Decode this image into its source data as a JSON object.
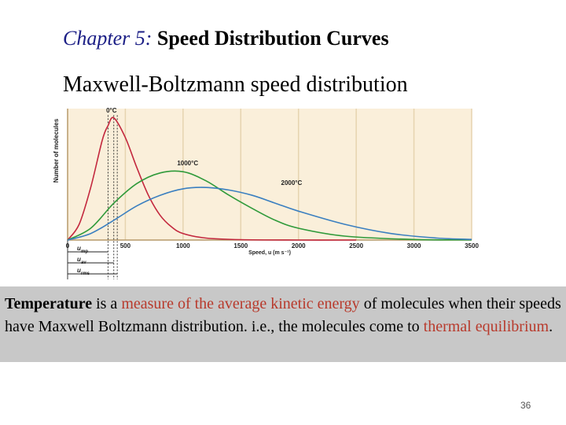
{
  "slide": {
    "chapter_label": "Chapter 5:",
    "title": "Speed Distribution Curves",
    "subtitle": "Maxwell-Boltzmann speed distribution",
    "page_number": "36"
  },
  "caption": {
    "parts": [
      {
        "text": "Temperature",
        "style": "bold"
      },
      {
        "text": " is a ",
        "style": "normal"
      },
      {
        "text": "measure of the average kinetic energy",
        "style": "red"
      },
      {
        "text": " of molecules when their speeds have Maxwell Boltzmann distribution. i.e., the molecules come to ",
        "style": "normal"
      },
      {
        "text": "thermal equilibrium",
        "style": "red"
      },
      {
        "text": ".",
        "style": "normal"
      }
    ]
  },
  "chart_data": {
    "type": "line",
    "xlabel": "Speed, u (m s⁻¹)",
    "ylabel": "Number of molecules",
    "xlim": [
      0,
      3500
    ],
    "ylim": [
      0,
      1.0
    ],
    "x_ticks": [
      0,
      500,
      1000,
      1500,
      2000,
      2500,
      3000,
      3500
    ],
    "x_tick_labels": [
      "0",
      "500",
      "1000",
      "1500",
      "2000",
      "2500",
      "3000",
      "3500"
    ],
    "grid": true,
    "colors": {
      "background": "#faefda",
      "grid": "#e6d4b0",
      "axis": "#b79a6a"
    },
    "series": [
      {
        "name": "0°C",
        "color": "#c3283e",
        "x": [
          0,
          100,
          200,
          300,
          350,
          400,
          500,
          600,
          700,
          800,
          900,
          1000,
          1200,
          1500,
          2000,
          2500
        ],
        "y": [
          0.0,
          0.12,
          0.4,
          0.76,
          0.87,
          0.93,
          0.78,
          0.55,
          0.34,
          0.19,
          0.1,
          0.05,
          0.015,
          0.003,
          0.0,
          0.0
        ]
      },
      {
        "name": "1000°C",
        "color": "#2f9a3a",
        "x": [
          0,
          200,
          400,
          600,
          800,
          1000,
          1200,
          1400,
          1600,
          1800,
          2000,
          2400,
          3000,
          3500
        ],
        "y": [
          0.0,
          0.09,
          0.28,
          0.43,
          0.51,
          0.52,
          0.45,
          0.34,
          0.24,
          0.15,
          0.09,
          0.03,
          0.004,
          0.001
        ]
      },
      {
        "name": "2000°C",
        "color": "#3a7fc0",
        "x": [
          0,
          200,
          400,
          600,
          800,
          1000,
          1200,
          1400,
          1600,
          1800,
          2000,
          2400,
          2800,
          3200,
          3500
        ],
        "y": [
          0.0,
          0.05,
          0.15,
          0.26,
          0.34,
          0.39,
          0.4,
          0.38,
          0.34,
          0.28,
          0.22,
          0.12,
          0.05,
          0.015,
          0.005
        ]
      }
    ],
    "curve_labels": [
      {
        "series": "0°C",
        "text": "0°C",
        "x": 380,
        "y": 0.97
      },
      {
        "series": "1000°C",
        "text": "1000°C",
        "x": 1040,
        "y": 0.57
      },
      {
        "series": "2000°C",
        "text": "2000°C",
        "x": 1940,
        "y": 0.42
      }
    ],
    "speed_markers": [
      {
        "label": "u",
        "subscript": "mp",
        "value": 350
      },
      {
        "label": "u",
        "subscript": "av",
        "value": 400
      },
      {
        "label": "u",
        "subscript": "rms",
        "value": 430
      }
    ]
  }
}
